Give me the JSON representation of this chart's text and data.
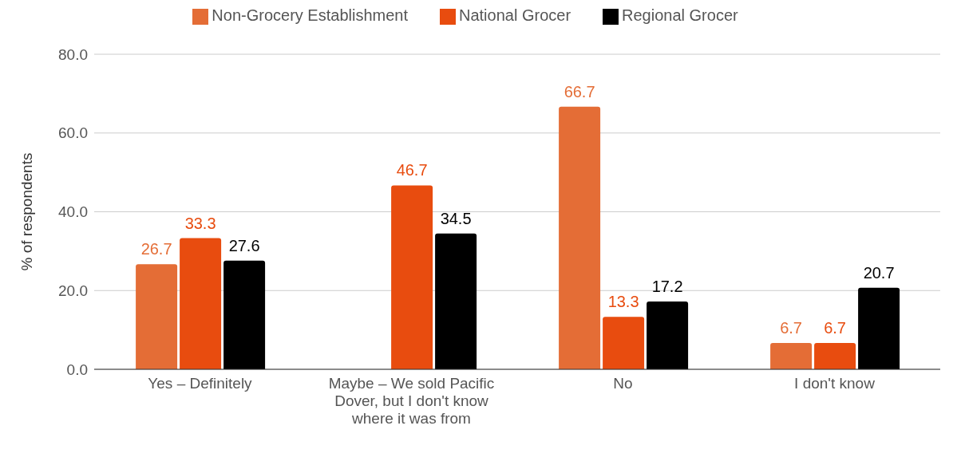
{
  "chart_data": {
    "type": "bar",
    "categories": [
      "Yes – Definitely",
      "Maybe – We sold Pacific Dover, but I don't know where it was from",
      "No",
      "I don't know"
    ],
    "series": [
      {
        "name": "Non-Grocery Establishment",
        "color": "#e46d36",
        "values": [
          26.7,
          null,
          66.7,
          6.7
        ]
      },
      {
        "name": "National Grocer",
        "color": "#e84c0f",
        "values": [
          33.3,
          46.7,
          13.3,
          6.7
        ]
      },
      {
        "name": "Regional Grocer",
        "color": "#000000",
        "values": [
          27.6,
          34.5,
          17.2,
          20.7
        ]
      }
    ],
    "ylabel": "% of respondents",
    "ylim": [
      0,
      80
    ],
    "yticks": [
      {
        "value": 0,
        "label": "0.0"
      },
      {
        "value": 20,
        "label": "20.0"
      },
      {
        "value": 40,
        "label": "40.0"
      },
      {
        "value": 60,
        "label": "60.0"
      },
      {
        "value": 80,
        "label": "80.0"
      }
    ],
    "grid": "y",
    "legend": "top",
    "data_labels": true
  }
}
